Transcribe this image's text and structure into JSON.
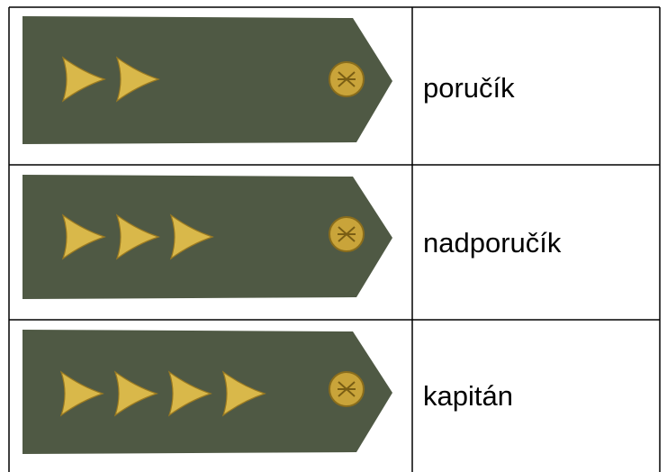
{
  "table": {
    "rows": [
      {
        "label": "poručík"
      },
      {
        "label": "nadporučík"
      },
      {
        "label": "kapitán"
      }
    ]
  }
}
